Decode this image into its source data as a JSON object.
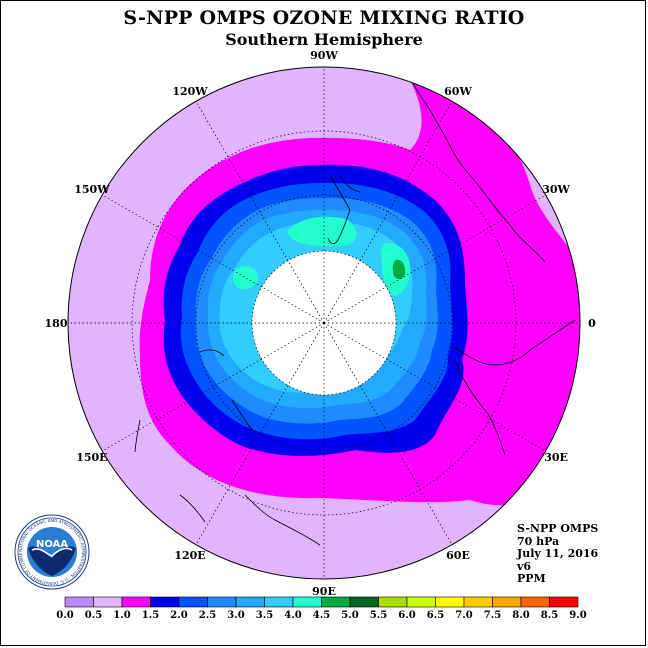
{
  "title": "S-NPP OMPS OZONE MIXING RATIO",
  "subtitle": "Southern Hemisphere",
  "longitude_labels": [
    "90W",
    "60W",
    "30W",
    "0",
    "30E",
    "60E",
    "90E",
    "120E",
    "150E",
    "180",
    "150W",
    "120W"
  ],
  "info": {
    "instrument": "S-NPP OMPS",
    "pressure_level": "70 hPa",
    "date": "July 11, 2016",
    "version": "v6",
    "units": "PPM"
  },
  "logo": {
    "text": "NOAA",
    "ring_text": "NATIONAL OCEANIC AND ATMOSPHERIC ADMINISTRATION · U.S. DEPARTMENT OF COMMERCE"
  },
  "colorbar": {
    "ticks": [
      "0.0",
      "0.5",
      "1.0",
      "1.5",
      "2.0",
      "2.5",
      "3.0",
      "3.5",
      "4.0",
      "4.5",
      "5.0",
      "5.5",
      "6.0",
      "6.5",
      "7.0",
      "7.5",
      "8.0",
      "8.5",
      "9.0"
    ],
    "colors": [
      "#bb88ff",
      "#e0b4ff",
      "#ff00ff",
      "#0000ee",
      "#0055ff",
      "#1e8cff",
      "#22aaff",
      "#33ccff",
      "#22ffcc",
      "#00aa44",
      "#006622",
      "#aadd00",
      "#ccff00",
      "#ffff00",
      "#ffcc00",
      "#ffa500",
      "#ff6600",
      "#ff0000",
      "#8b5a2b"
    ]
  },
  "map_colors": {
    "outer": "#e0b4ff",
    "magenta": "#ff00ff",
    "dark_blue": "#0000ee",
    "blue": "#0055ff",
    "mid_blue": "#1e8cff",
    "light_blue": "#22aaff",
    "cyan": "#33ccff",
    "teal": "#22ffcc",
    "green": "#00aa44",
    "pole_hole": "#ffffff"
  }
}
